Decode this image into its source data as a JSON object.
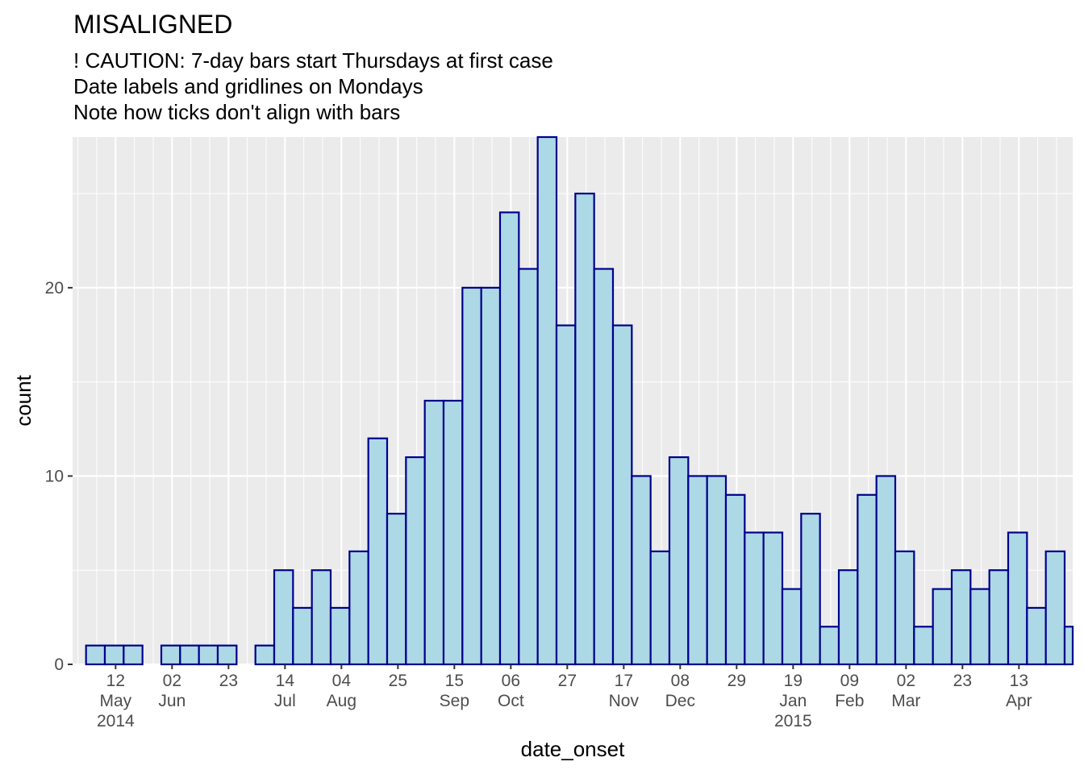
{
  "chart_data": {
    "type": "bar",
    "title": "MISALIGNED",
    "subtitle": [
      "! CAUTION: 7-day bars start Thursdays at first case",
      "Date labels and gridlines on Mondays",
      "Note how ticks don't align with bars"
    ],
    "xlabel": "date_onset",
    "ylabel": "count",
    "bin_width_days": 7,
    "bins_start": "2014-05-01",
    "x_range": [
      "2014-04-26",
      "2015-05-03"
    ],
    "ylim": [
      0,
      28
    ],
    "y_ticks": [
      0,
      10,
      20
    ],
    "x_ticks": [
      {
        "date": "2014-05-12",
        "lines": [
          "12",
          "May",
          "2014"
        ]
      },
      {
        "date": "2014-06-02",
        "lines": [
          "02",
          "Jun"
        ]
      },
      {
        "date": "2014-06-23",
        "lines": [
          "23"
        ]
      },
      {
        "date": "2014-07-14",
        "lines": [
          "14",
          "Jul"
        ]
      },
      {
        "date": "2014-08-04",
        "lines": [
          "04",
          "Aug"
        ]
      },
      {
        "date": "2014-08-25",
        "lines": [
          "25"
        ]
      },
      {
        "date": "2014-09-15",
        "lines": [
          "15",
          "Sep"
        ]
      },
      {
        "date": "2014-10-06",
        "lines": [
          "06",
          "Oct"
        ]
      },
      {
        "date": "2014-10-27",
        "lines": [
          "27"
        ]
      },
      {
        "date": "2014-11-17",
        "lines": [
          "17",
          "Nov"
        ]
      },
      {
        "date": "2014-12-08",
        "lines": [
          "08",
          "Dec"
        ]
      },
      {
        "date": "2014-12-29",
        "lines": [
          "29"
        ]
      },
      {
        "date": "2015-01-19",
        "lines": [
          "19",
          "Jan",
          "2015"
        ]
      },
      {
        "date": "2015-02-09",
        "lines": [
          "09",
          "Feb"
        ]
      },
      {
        "date": "2015-03-02",
        "lines": [
          "02",
          "Mar"
        ]
      },
      {
        "date": "2015-03-23",
        "lines": [
          "23"
        ]
      },
      {
        "date": "2015-04-13",
        "lines": [
          "13",
          "Apr"
        ]
      }
    ],
    "values": [
      1,
      1,
      1,
      0,
      1,
      1,
      1,
      1,
      0,
      1,
      5,
      3,
      5,
      3,
      6,
      12,
      8,
      11,
      14,
      14,
      20,
      20,
      24,
      21,
      28,
      18,
      25,
      21,
      18,
      10,
      6,
      11,
      10,
      10,
      9,
      7,
      7,
      4,
      8,
      2,
      5,
      9,
      10,
      6,
      2,
      4,
      5,
      4,
      5,
      7,
      3,
      6,
      2
    ],
    "fill_color": "#add8e6",
    "outline_color": "#00008b",
    "panel_background": "#ebebeb",
    "grid": true
  }
}
